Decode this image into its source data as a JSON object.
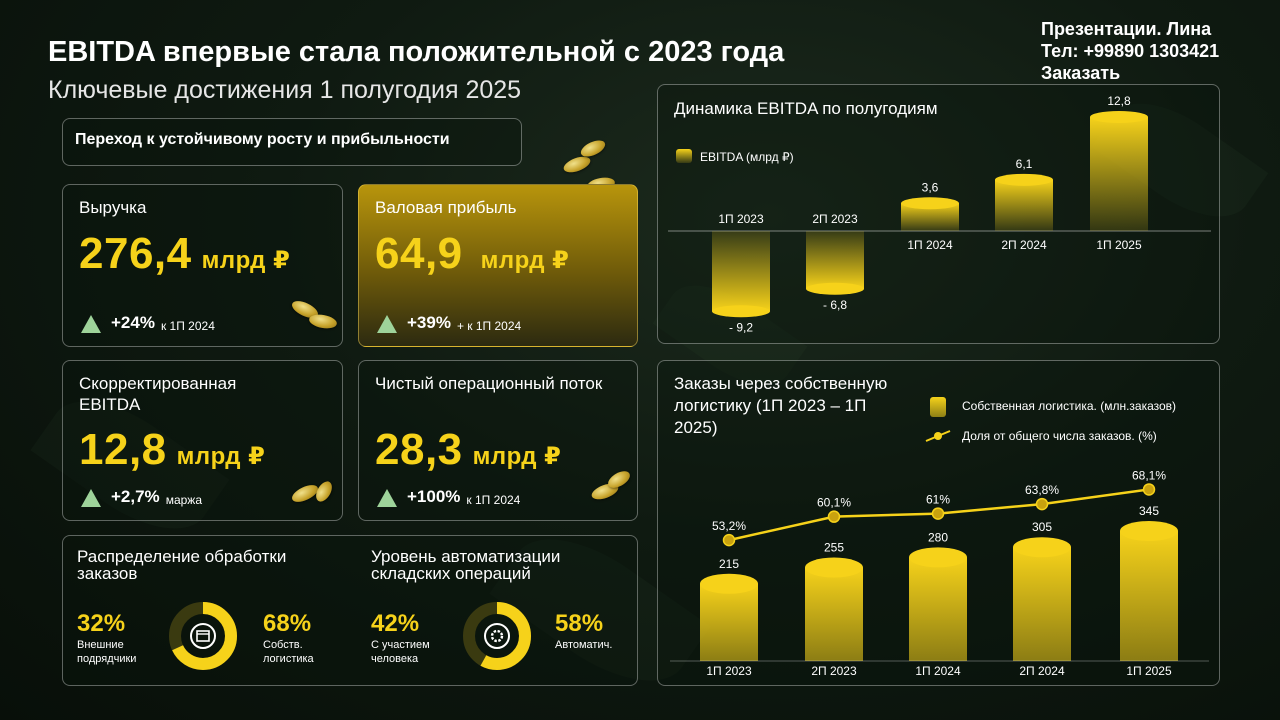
{
  "header": {
    "title": "EBITDA впервые стала положительной с 2023 года",
    "subtitle": "Ключевые достижения 1 полугодия 2025",
    "contact_line1": "Презентации. Лина",
    "contact_line2": "Тел: +99890 1303421",
    "contact_line3": "Заказать"
  },
  "transition_label": "Переход к устойчивому росту и прибыльности",
  "kpis": [
    {
      "title": "Выручка",
      "value": "276,4",
      "unit": "млрд ₽",
      "delta": "+24%",
      "note": "к 1П 2024"
    },
    {
      "title": "Валовая прибыль",
      "value": "64,9",
      "unit": "млрд ₽",
      "delta": "+39%",
      "note": "+ к 1П 2024"
    },
    {
      "title": "Скорректированная EBITDA",
      "value": "12,8",
      "unit": "млрд ₽",
      "delta": "+2,7%",
      "note": "маржа"
    },
    {
      "title": "Чистый операционный поток",
      "value": "28,3",
      "unit": "млрд ₽",
      "delta": "+100%",
      "note": "к 1П 2024"
    }
  ],
  "distribution": {
    "title": "Распределение обработки заказов",
    "left_pct": "32%",
    "left_label": "Внешние подрядчики",
    "right_pct": "68%",
    "right_label": "Собств. логистика",
    "share": 0.68
  },
  "automation": {
    "title": "Уровень автоматизации складских операций",
    "left_pct": "42%",
    "left_label": "С участием человека",
    "right_pct": "58%",
    "right_label": "Автоматич.",
    "share": 0.58
  },
  "icons": {
    "box": "box-arrows-icon",
    "gear": "gear-cycle-icon",
    "up": "triangle-up-icon",
    "coin": "coin-icon"
  },
  "colors": {
    "accent": "#f6d21a",
    "positive": "#9ed39a",
    "background": "#0f1a11"
  },
  "chart_data": [
    {
      "type": "bar",
      "title": "Динамика EBITDA по полугодиям",
      "legend": "EBITDA (млрд ₽)",
      "categories": [
        "1П 2023",
        "2П 2023",
        "1П 2024",
        "2П 2024",
        "1П 2025"
      ],
      "values": [
        -9.2,
        -6.8,
        3.6,
        6.1,
        12.8
      ],
      "value_labels": [
        "- 9,2",
        "- 6,8",
        "3,6",
        "6,1",
        "12,8"
      ],
      "ylim": [
        -9.2,
        12.8
      ],
      "grid": false
    },
    {
      "type": "bar",
      "title": "Заказы через собственную логистику (1П 2023 – 1П 2025)",
      "categories": [
        "1П 2023",
        "2П 2023",
        "1П 2024",
        "2П 2024",
        "1П 2025"
      ],
      "series": [
        {
          "name": "Собственная логистика. (млн.заказов)",
          "type": "bar",
          "values": [
            215,
            255,
            280,
            305,
            345
          ],
          "labels": [
            "215",
            "255",
            "280",
            "305",
            "345"
          ]
        },
        {
          "name": "Доля от общего числа заказов. (%)",
          "type": "line",
          "values": [
            53.2,
            60.1,
            61,
            63.8,
            68.1
          ],
          "labels": [
            "53,2%",
            "60,1%",
            "61%",
            "63,8%",
            "68,1%"
          ]
        }
      ],
      "legend_position": "top-right"
    }
  ]
}
